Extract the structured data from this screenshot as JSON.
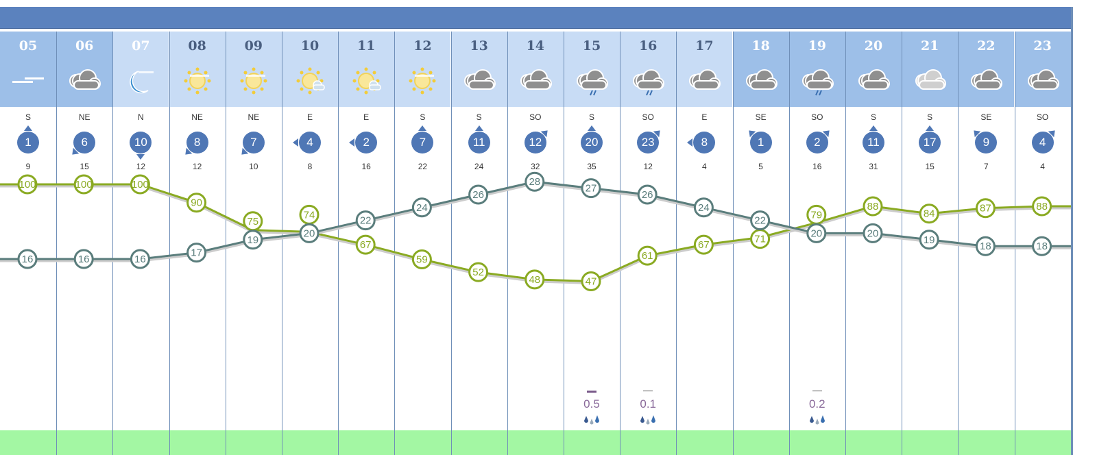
{
  "colors": {
    "header": "#5b82be",
    "day": "#c8dcf5",
    "night": "#9dbfe8",
    "temperature": "#5a7d7c",
    "humidity": "#8aaa22",
    "wind": "#4f77b5",
    "precip": "#8a6a9a",
    "band": "#a3f7a3"
  },
  "hours": [
    {
      "hour": "05",
      "period": "night",
      "icon": "fog",
      "wind_dir": "S",
      "wind": "1",
      "gust": "9"
    },
    {
      "hour": "06",
      "period": "night",
      "icon": "cloudy",
      "wind_dir": "NE",
      "wind": "6",
      "gust": "15"
    },
    {
      "hour": "07",
      "period": "day",
      "icon": "moon-haze",
      "wind_dir": "N",
      "wind": "10",
      "gust": "12"
    },
    {
      "hour": "08",
      "period": "day",
      "icon": "sun-haze",
      "wind_dir": "NE",
      "wind": "8",
      "gust": "12"
    },
    {
      "hour": "09",
      "period": "day",
      "icon": "sun-haze",
      "wind_dir": "NE",
      "wind": "7",
      "gust": "10"
    },
    {
      "hour": "10",
      "period": "day",
      "icon": "sun-cloud",
      "wind_dir": "E",
      "wind": "4",
      "gust": "8"
    },
    {
      "hour": "11",
      "period": "day",
      "icon": "sun-cloud",
      "wind_dir": "E",
      "wind": "2",
      "gust": "16"
    },
    {
      "hour": "12",
      "period": "day",
      "icon": "sun-haze",
      "wind_dir": "S",
      "wind": "7",
      "gust": "22"
    },
    {
      "hour": "13",
      "period": "day",
      "icon": "cloudy",
      "wind_dir": "S",
      "wind": "11",
      "gust": "24"
    },
    {
      "hour": "14",
      "period": "day",
      "icon": "cloudy",
      "wind_dir": "SO",
      "wind": "12",
      "gust": "32"
    },
    {
      "hour": "15",
      "period": "day",
      "icon": "cloud-rain",
      "wind_dir": "S",
      "wind": "20",
      "gust": "35",
      "precip": "0.5"
    },
    {
      "hour": "16",
      "period": "day",
      "icon": "cloud-rain",
      "wind_dir": "SO",
      "wind": "23",
      "gust": "12",
      "precip": "0.1"
    },
    {
      "hour": "17",
      "period": "day",
      "icon": "cloudy",
      "wind_dir": "E",
      "wind": "8",
      "gust": "4"
    },
    {
      "hour": "18",
      "period": "night",
      "icon": "cloudy",
      "wind_dir": "SE",
      "wind": "1",
      "gust": "5"
    },
    {
      "hour": "19",
      "period": "night",
      "icon": "cloud-rain",
      "wind_dir": "SO",
      "wind": "2",
      "gust": "16",
      "precip": "0.2"
    },
    {
      "hour": "20",
      "period": "night",
      "icon": "cloudy",
      "wind_dir": "S",
      "wind": "11",
      "gust": "31"
    },
    {
      "hour": "21",
      "period": "night",
      "icon": "cloudy-light",
      "wind_dir": "S",
      "wind": "17",
      "gust": "15"
    },
    {
      "hour": "22",
      "period": "night",
      "icon": "cloudy",
      "wind_dir": "SE",
      "wind": "9",
      "gust": "7"
    },
    {
      "hour": "23",
      "period": "night",
      "icon": "cloudy",
      "wind_dir": "SO",
      "wind": "4",
      "gust": "4"
    }
  ],
  "chart_data": {
    "type": "line",
    "categories": [
      "05",
      "06",
      "07",
      "08",
      "09",
      "10",
      "11",
      "12",
      "13",
      "14",
      "15",
      "16",
      "17",
      "18",
      "19",
      "20",
      "21",
      "22",
      "23"
    ],
    "series": [
      {
        "key": "temperature",
        "values": [
          16,
          16,
          16,
          17,
          19,
          20,
          22,
          24,
          26,
          28,
          27,
          26,
          24,
          22,
          20,
          20,
          19,
          18,
          18
        ]
      },
      {
        "key": "humidity",
        "values": [
          100,
          100,
          100,
          90,
          75,
          74,
          67,
          59,
          52,
          48,
          47,
          61,
          67,
          71,
          79,
          88,
          84,
          87,
          88
        ]
      }
    ],
    "precipitation": {
      "15": 0.5,
      "16": 0.1,
      "19": 0.2
    },
    "grid": true
  }
}
